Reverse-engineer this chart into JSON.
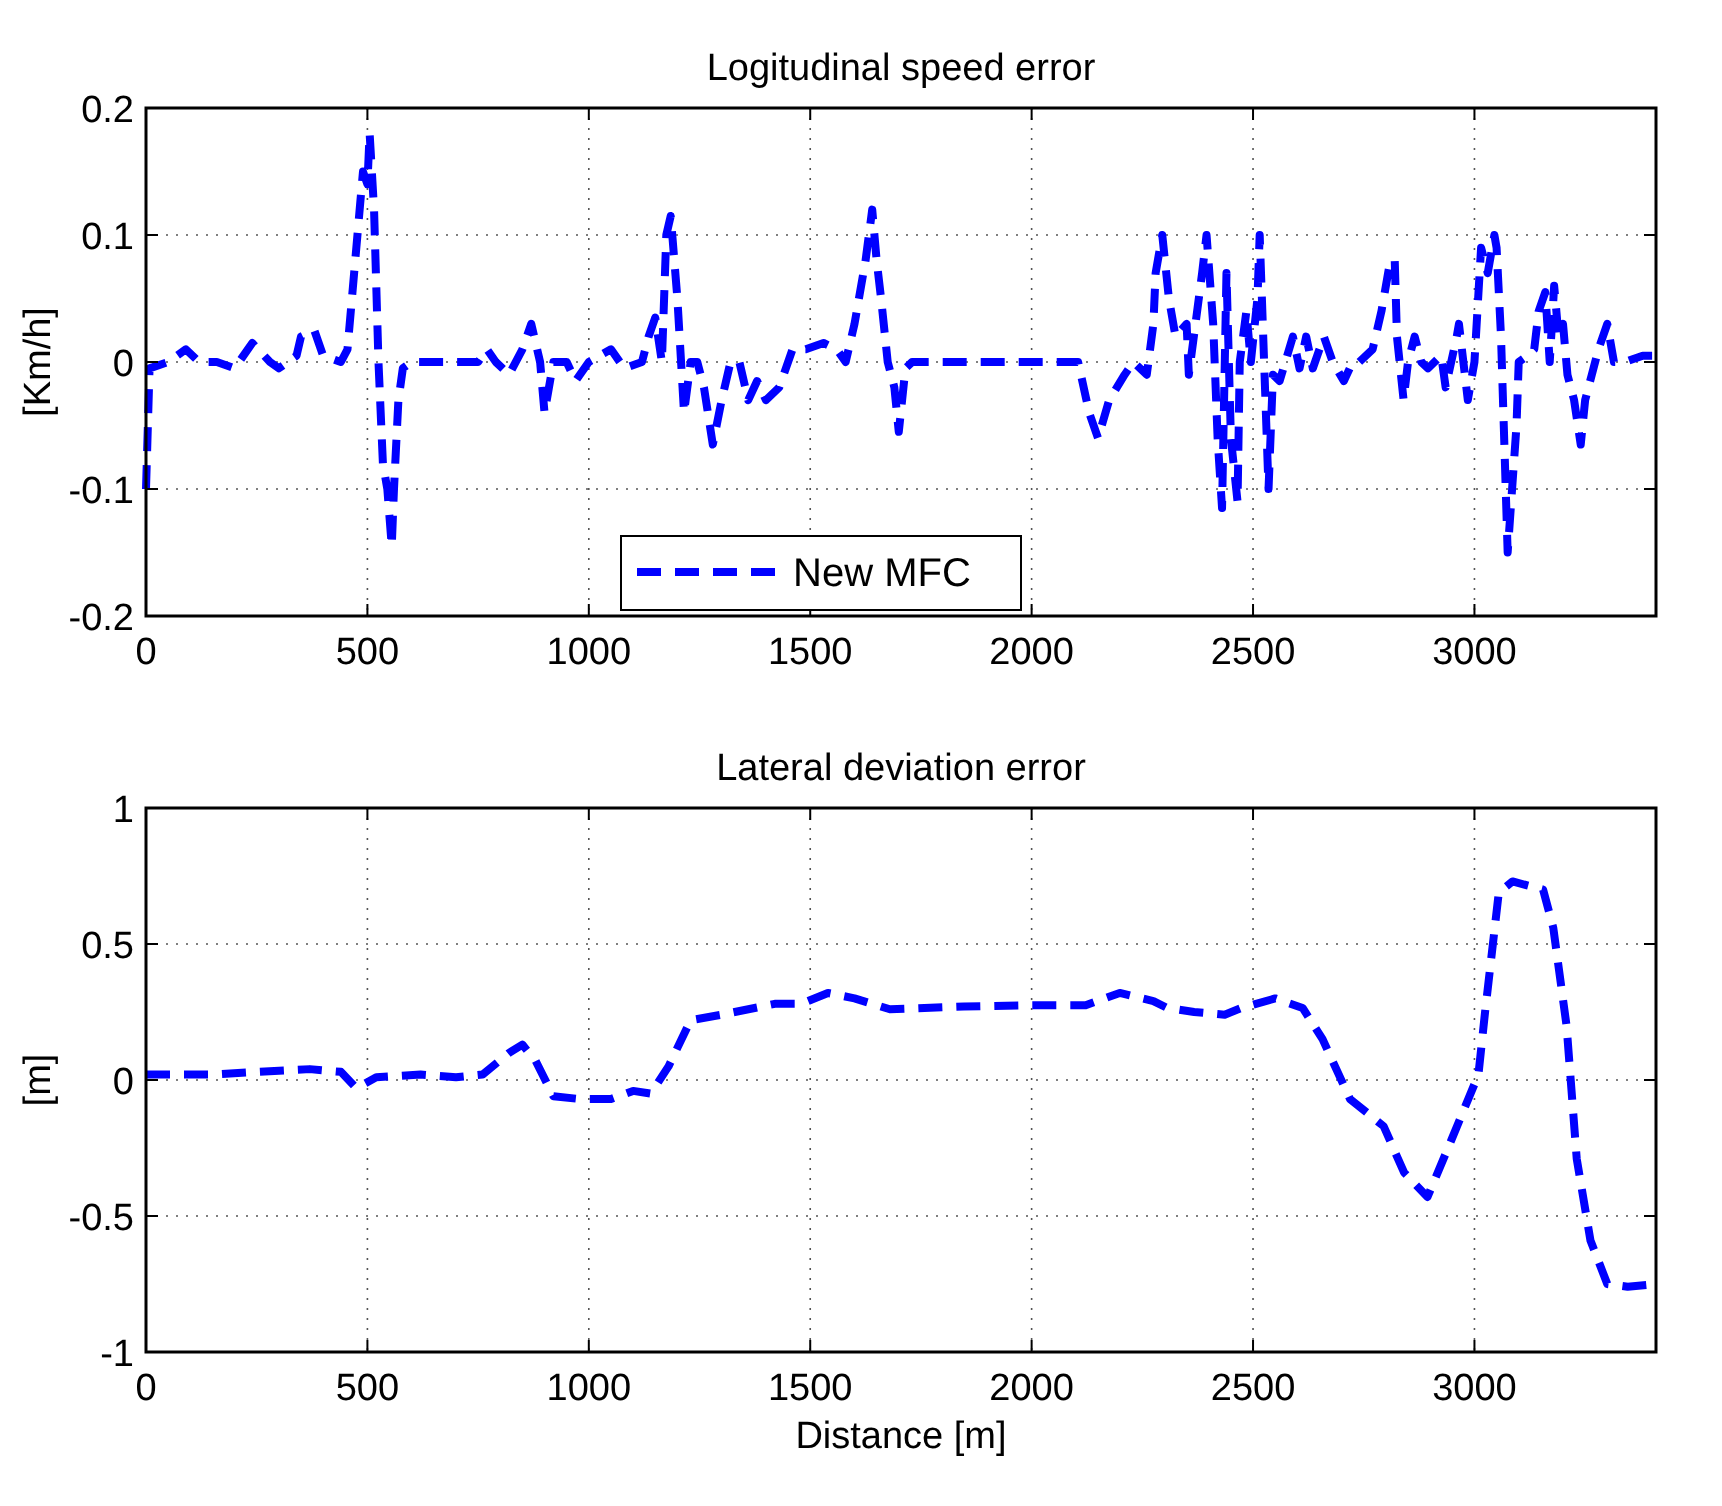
{
  "chart_data": [
    {
      "type": "line",
      "title": "Logitudinal speed error",
      "ylabel": "[Km/h]",
      "xlim": [
        0,
        3410
      ],
      "xticks": [
        0,
        500,
        1000,
        1500,
        2000,
        2500,
        3000
      ],
      "ylim": [
        -0.2,
        0.2
      ],
      "yticks": [
        -0.2,
        -0.1,
        0,
        0.1,
        0.2
      ],
      "grid": true,
      "legend": "bottom",
      "line_style": "dashed",
      "series": [
        {
          "name": "New MFC",
          "color": "#0000ff",
          "x": [
            0,
            8,
            50,
            90,
            120,
            160,
            200,
            240,
            280,
            300,
            340,
            350,
            380,
            400,
            440,
            455,
            470,
            490,
            500,
            505,
            515,
            525,
            535,
            545,
            555,
            560,
            570,
            580,
            600,
            700,
            750,
            770,
            790,
            820,
            850,
            870,
            890,
            900,
            920,
            950,
            970,
            1000,
            1050,
            1080,
            1120,
            1135,
            1150,
            1165,
            1175,
            1185,
            1200,
            1215,
            1230,
            1245,
            1260,
            1280,
            1300,
            1320,
            1340,
            1360,
            1380,
            1400,
            1430,
            1460,
            1490,
            1530,
            1560,
            1580,
            1600,
            1625,
            1640,
            1650,
            1660,
            1675,
            1690,
            1700,
            1715,
            1730,
            1800,
            1900,
            2000,
            2105,
            2130,
            2150,
            2175,
            2210,
            2230,
            2260,
            2275,
            2280,
            2295,
            2310,
            2325,
            2350,
            2355,
            2370,
            2385,
            2395,
            2410,
            2420,
            2430,
            2440,
            2450,
            2465,
            2470,
            2485,
            2495,
            2510,
            2515,
            2525,
            2530,
            2535,
            2545,
            2560,
            2590,
            2605,
            2620,
            2635,
            2660,
            2680,
            2705,
            2725,
            2740,
            2770,
            2790,
            2810,
            2820,
            2825,
            2840,
            2850,
            2865,
            2880,
            2895,
            2925,
            2935,
            2960,
            2965,
            2985,
            3000,
            3015,
            3030,
            3045,
            3050,
            3060,
            3068,
            3075,
            3085,
            3095,
            3100,
            3120,
            3135,
            3145,
            3160,
            3170,
            3180,
            3190,
            3200,
            3210,
            3225,
            3240,
            3250,
            3265,
            3280,
            3300,
            3315,
            3340,
            3380,
            3410
          ],
          "values": [
            -0.1,
            -0.005,
            0,
            0.01,
            0,
            0,
            -0.005,
            0.015,
            0,
            -0.005,
            0.005,
            0.02,
            0.025,
            0.005,
            0,
            0.01,
            0.07,
            0.15,
            0.14,
            0.18,
            0.12,
            0,
            -0.08,
            -0.1,
            -0.145,
            -0.1,
            -0.03,
            -0.005,
            0,
            0,
            0,
            0.01,
            0,
            -0.01,
            0.01,
            0.03,
            0,
            -0.04,
            0,
            0,
            -0.015,
            0,
            0.01,
            -0.005,
            0,
            0.02,
            0.035,
            0,
            0.1,
            0.115,
            0.05,
            -0.04,
            0,
            0,
            -0.02,
            -0.065,
            -0.03,
            0,
            0,
            -0.03,
            -0.015,
            -0.03,
            -0.02,
            0.01,
            0.01,
            0.015,
            0.01,
            0,
            0.03,
            0.08,
            0.12,
            0.08,
            0.05,
            0,
            -0.02,
            -0.055,
            -0.005,
            0,
            0,
            0,
            0,
            0,
            -0.04,
            -0.06,
            -0.03,
            -0.01,
            0,
            -0.01,
            0.03,
            0.07,
            0.1,
            0.05,
            0.02,
            0.03,
            -0.01,
            0.03,
            0.07,
            0.1,
            0.03,
            -0.06,
            -0.115,
            0.07,
            -0.06,
            -0.11,
            0,
            0.04,
            0,
            0.05,
            0.1,
            0,
            -0.05,
            -0.1,
            -0.01,
            -0.015,
            0.02,
            -0.005,
            0.02,
            -0.005,
            0.02,
            0,
            -0.015,
            0,
            0,
            0.01,
            0.04,
            0.08,
            0.08,
            0.02,
            -0.03,
            0,
            0.02,
            0,
            -0.005,
            0.005,
            -0.02,
            0.02,
            0.03,
            -0.03,
            0,
            0.09,
            0.07,
            0.1,
            0.09,
            0.02,
            -0.07,
            -0.15,
            -0.1,
            -0.05,
            0,
            0.005,
            0.01,
            0.04,
            0.055,
            0,
            0.06,
            0.02,
            0.03,
            -0.01,
            -0.03,
            -0.065,
            -0.03,
            -0.01,
            0.01,
            0.03,
            0,
            0,
            0.005,
            0.005
          ]
        }
      ]
    },
    {
      "type": "line",
      "title": "Lateral deviation error",
      "xlabel": "Distance [m]",
      "ylabel": "[m]",
      "xlim": [
        0,
        3410
      ],
      "xticks": [
        0,
        500,
        1000,
        1500,
        2000,
        2500,
        3000
      ],
      "ylim": [
        -1,
        1
      ],
      "yticks": [
        -1,
        -0.5,
        0,
        0.5,
        1
      ],
      "grid": true,
      "line_style": "dashed",
      "series": [
        {
          "color": "#0000ff",
          "x": [
            0,
            150,
            250,
            370,
            440,
            475,
            520,
            620,
            700,
            760,
            820,
            850,
            880,
            920,
            980,
            1050,
            1100,
            1140,
            1180,
            1230,
            1300,
            1420,
            1480,
            1540,
            1600,
            1680,
            1847,
            2000,
            2122,
            2199,
            2275,
            2306,
            2367,
            2436,
            2474,
            2550,
            2612,
            2657,
            2719,
            2795,
            2841,
            2894,
            2948,
            3009,
            3024,
            3055,
            3086,
            3155,
            3178,
            3208,
            3231,
            3262,
            3300,
            3346,
            3410
          ],
          "values": [
            0.02,
            0.02,
            0.03,
            0.04,
            0.03,
            -0.03,
            0.01,
            0.02,
            0.01,
            0.02,
            0.1,
            0.13,
            0.07,
            -0.06,
            -0.07,
            -0.07,
            -0.04,
            -0.05,
            0.05,
            0.22,
            0.24,
            0.28,
            0.28,
            0.32,
            0.3,
            0.26,
            0.27,
            0.275,
            0.275,
            0.32,
            0.29,
            0.265,
            0.25,
            0.24,
            0.265,
            0.3,
            0.265,
            0.15,
            -0.07,
            -0.17,
            -0.34,
            -0.43,
            -0.22,
            0.02,
            0.25,
            0.69,
            0.73,
            0.7,
            0.56,
            0.2,
            -0.29,
            -0.59,
            -0.75,
            -0.76,
            -0.75
          ]
        }
      ]
    }
  ]
}
